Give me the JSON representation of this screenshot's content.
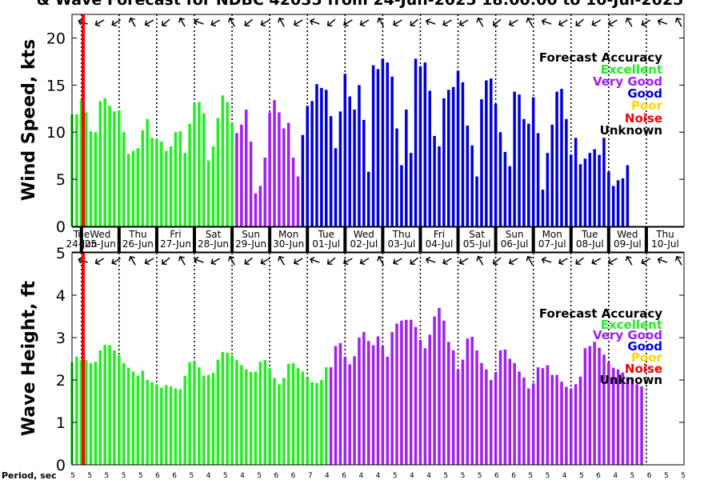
{
  "title": "& Wave Forecast for NDBC 42035 from 24-Jun-2025 18:00:00 to 10-Jul-2025",
  "colors": {
    "Excellent": "#22ee22",
    "Very Good": "#a020f0",
    "Good": "#0000dd",
    "Poor": "#ffd700",
    "Noise": "#ff0000",
    "Unknown": "#000000"
  },
  "legend": {
    "title": "Forecast Accuracy",
    "items": [
      "Excellent",
      "Very Good",
      "Good",
      "Poor",
      "Noise",
      "Unknown"
    ],
    "placement": "top-right"
  },
  "days": [
    {
      "day": "Tue",
      "date": "24-Jun"
    },
    {
      "day": "Wed",
      "date": "25-Jun"
    },
    {
      "day": "Thu",
      "date": "26-Jun"
    },
    {
      "day": "Fri",
      "date": "27-Jun"
    },
    {
      "day": "Sat",
      "date": "28-Jun"
    },
    {
      "day": "Sun",
      "date": "29-Jun"
    },
    {
      "day": "Mon",
      "date": "30-Jun"
    },
    {
      "day": "Tue",
      "date": "01-Jul"
    },
    {
      "day": "Wed",
      "date": "02-Jul"
    },
    {
      "day": "Thu",
      "date": "03-Jul"
    },
    {
      "day": "Fri",
      "date": "04-Jul"
    },
    {
      "day": "Sat",
      "date": "05-Jul"
    },
    {
      "day": "Sun",
      "date": "06-Jul"
    },
    {
      "day": "Mon",
      "date": "07-Jul"
    },
    {
      "day": "Tue",
      "date": "08-Jul"
    },
    {
      "day": "Wed",
      "date": "09-Jul"
    },
    {
      "day": "Thu",
      "date": "10-Jul"
    }
  ],
  "period_label": "Period, sec",
  "period_values": [
    "5",
    "5",
    "5",
    "5",
    "5",
    "6",
    "6",
    "5",
    "4",
    "5",
    "4",
    "5",
    "6",
    "6",
    "7",
    "4",
    "6",
    "4",
    "4",
    "5",
    "4",
    "4",
    "5",
    "5",
    "5",
    "6",
    "6",
    "5",
    "5",
    "4",
    "5",
    "6",
    "4",
    "5",
    "6",
    "5",
    "5"
  ],
  "chart_data": [
    {
      "type": "bar",
      "ylabel": "Wind Speed, kts",
      "ylim": [
        0,
        22.5
      ],
      "yticks": [
        0,
        5,
        10,
        15,
        20
      ],
      "xlim": [
        0,
        16.25
      ],
      "x_start": "24-Jun-2025 18:00",
      "x_step_hours": 3,
      "grid": "daily dotted lines",
      "current_time_line": {
        "date": "25-Jun-2025 00:00",
        "color": "#ff0000"
      },
      "series": [
        {
          "category": "Excellent",
          "values": [
            11.9,
            11.9,
            13.4,
            12.1,
            10.1,
            10.0,
            13.3,
            13.6,
            12.8,
            12.2,
            12.3,
            10.0,
            7.7,
            8.0,
            8.3,
            10.2,
            11.4,
            9.4,
            9.3,
            9.0,
            8.0,
            8.5,
            10.0,
            10.1,
            7.8,
            10.9,
            13.1,
            13.2,
            12.0,
            7.0,
            8.5,
            11.5,
            13.9,
            13.2,
            11.0
          ]
        },
        {
          "category": "Very Good",
          "values": [
            9.9,
            10.8,
            12.4,
            9.0,
            3.5,
            4.3,
            7.3,
            12.1,
            13.4,
            12.1,
            10.4,
            11.0,
            7.3,
            5.3
          ]
        },
        {
          "category": "Good",
          "values": [
            9.7,
            12.8,
            13.3,
            15.1,
            14.7,
            14.5,
            11.7,
            8.3,
            12.2,
            16.2,
            13.8,
            12.4,
            15.0,
            11.3,
            5.8,
            17.1,
            16.7,
            17.8,
            17.4,
            15.9,
            10.4,
            6.5,
            12.4,
            7.8,
            17.8,
            17.0,
            17.4,
            14.4,
            9.6,
            8.5,
            13.6,
            14.5,
            14.8,
            16.5,
            15.3,
            10.7,
            8.6,
            5.3,
            13.5,
            15.5,
            15.7,
            13.0,
            10.0,
            7.9,
            6.4,
            14.3,
            14.0,
            11.4,
            10.9,
            13.7,
            9.9,
            3.9,
            7.8,
            10.8,
            14.3,
            14.6,
            11.4,
            7.6,
            9.4,
            6.6,
            7.2,
            7.8,
            8.2,
            7.6,
            9.4,
            5.8,
            4.3,
            4.9,
            5.1,
            6.5
          ]
        }
      ]
    },
    {
      "type": "bar",
      "ylabel": "Wave Height, ft",
      "ylim": [
        0,
        5
      ],
      "yticks": [
        0,
        1,
        2,
        3,
        4,
        5
      ],
      "xlim": [
        0,
        16.25
      ],
      "x_start": "24-Jun-2025 18:00",
      "x_step_hours": 3,
      "grid": "daily dotted lines",
      "current_time_line": {
        "date": "25-Jun-2025 00:00",
        "color": "#ff0000"
      },
      "series": [
        {
          "category": "Excellent",
          "values": [
            2.42,
            2.55,
            2.47,
            2.47,
            2.4,
            2.43,
            2.7,
            2.83,
            2.82,
            2.7,
            2.59,
            2.4,
            2.29,
            2.2,
            2.1,
            2.22,
            2.0,
            1.95,
            1.9,
            1.82,
            1.88,
            1.85,
            1.8,
            1.78,
            2.1,
            2.42,
            2.45,
            2.3,
            2.1,
            2.12,
            2.17,
            2.48,
            2.66,
            2.64,
            2.58,
            2.47,
            2.35,
            2.25,
            2.19,
            2.2,
            2.43,
            2.47,
            2.28,
            2.05,
            1.9,
            2.05,
            2.38,
            2.4,
            2.28,
            2.2,
            2.05,
            1.95,
            1.93,
            2.0,
            2.3
          ]
        },
        {
          "category": "Very Good",
          "values": [
            2.3,
            2.8,
            2.87,
            2.55,
            2.37,
            2.56,
            3.0,
            3.13,
            2.92,
            2.82,
            3.03,
            2.8,
            2.55,
            3.13,
            3.33,
            3.4,
            3.42,
            3.42,
            3.25,
            2.95,
            2.75,
            3.07,
            3.5,
            3.7,
            3.4,
            2.9,
            2.7,
            2.25,
            2.48,
            2.98,
            3.02,
            2.7,
            2.4,
            2.25,
            2.0,
            2.19,
            2.7,
            2.72,
            2.5,
            2.4,
            2.2,
            2.06,
            1.8,
            1.92,
            2.3,
            2.28,
            2.35,
            2.12,
            2.12,
            1.96,
            1.84,
            1.8,
            1.9,
            2.08,
            2.75,
            2.8,
            2.9,
            2.76,
            2.6,
            2.42,
            2.29,
            2.25,
            2.18,
            2.06,
            2.03,
            1.9,
            1.85
          ]
        }
      ]
    }
  ]
}
